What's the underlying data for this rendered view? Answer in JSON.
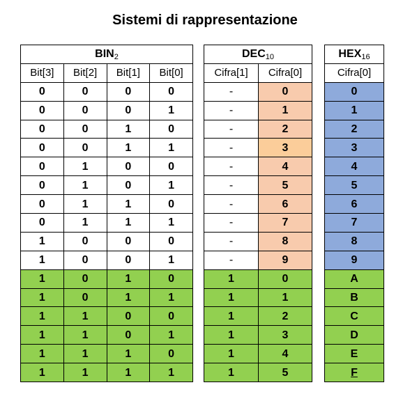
{
  "title": "Sistemi di rappresentazione",
  "bin": {
    "label": "BIN",
    "subscript": "2",
    "columns": [
      "Bit[3]",
      "Bit[2]",
      "Bit[1]",
      "Bit[0]"
    ],
    "rows": [
      [
        "0",
        "0",
        "0",
        "0"
      ],
      [
        "0",
        "0",
        "0",
        "1"
      ],
      [
        "0",
        "0",
        "1",
        "0"
      ],
      [
        "0",
        "0",
        "1",
        "1"
      ],
      [
        "0",
        "1",
        "0",
        "0"
      ],
      [
        "0",
        "1",
        "0",
        "1"
      ],
      [
        "0",
        "1",
        "1",
        "0"
      ],
      [
        "0",
        "1",
        "1",
        "1"
      ],
      [
        "1",
        "0",
        "0",
        "0"
      ],
      [
        "1",
        "0",
        "0",
        "1"
      ],
      [
        "1",
        "0",
        "1",
        "0"
      ],
      [
        "1",
        "0",
        "1",
        "1"
      ],
      [
        "1",
        "1",
        "0",
        "0"
      ],
      [
        "1",
        "1",
        "0",
        "1"
      ],
      [
        "1",
        "1",
        "1",
        "0"
      ],
      [
        "1",
        "1",
        "1",
        "1"
      ]
    ]
  },
  "dec": {
    "label": "DEC",
    "subscript": "10",
    "columns": [
      "Cifra[1]",
      "Cifra[0]"
    ],
    "rows": [
      [
        "-",
        "0"
      ],
      [
        "-",
        "1"
      ],
      [
        "-",
        "2"
      ],
      [
        "-",
        "3"
      ],
      [
        "-",
        "4"
      ],
      [
        "-",
        "5"
      ],
      [
        "-",
        "6"
      ],
      [
        "-",
        "7"
      ],
      [
        "-",
        "8"
      ],
      [
        "-",
        "9"
      ],
      [
        "1",
        "0"
      ],
      [
        "1",
        "1"
      ],
      [
        "1",
        "2"
      ],
      [
        "1",
        "3"
      ],
      [
        "1",
        "4"
      ],
      [
        "1",
        "5"
      ]
    ]
  },
  "hex": {
    "label": "HEX",
    "subscript": "16",
    "columns": [
      "Cifra[0]"
    ],
    "rows": [
      "0",
      "1",
      "2",
      "3",
      "4",
      "5",
      "6",
      "7",
      "8",
      "9",
      "A",
      "B",
      "C",
      "D",
      "E",
      "F"
    ]
  },
  "colors": {
    "green": "#92d050",
    "peach": "#f8cbad",
    "peach_highlight": "#fbcd9a",
    "blue": "#8eaadb"
  }
}
